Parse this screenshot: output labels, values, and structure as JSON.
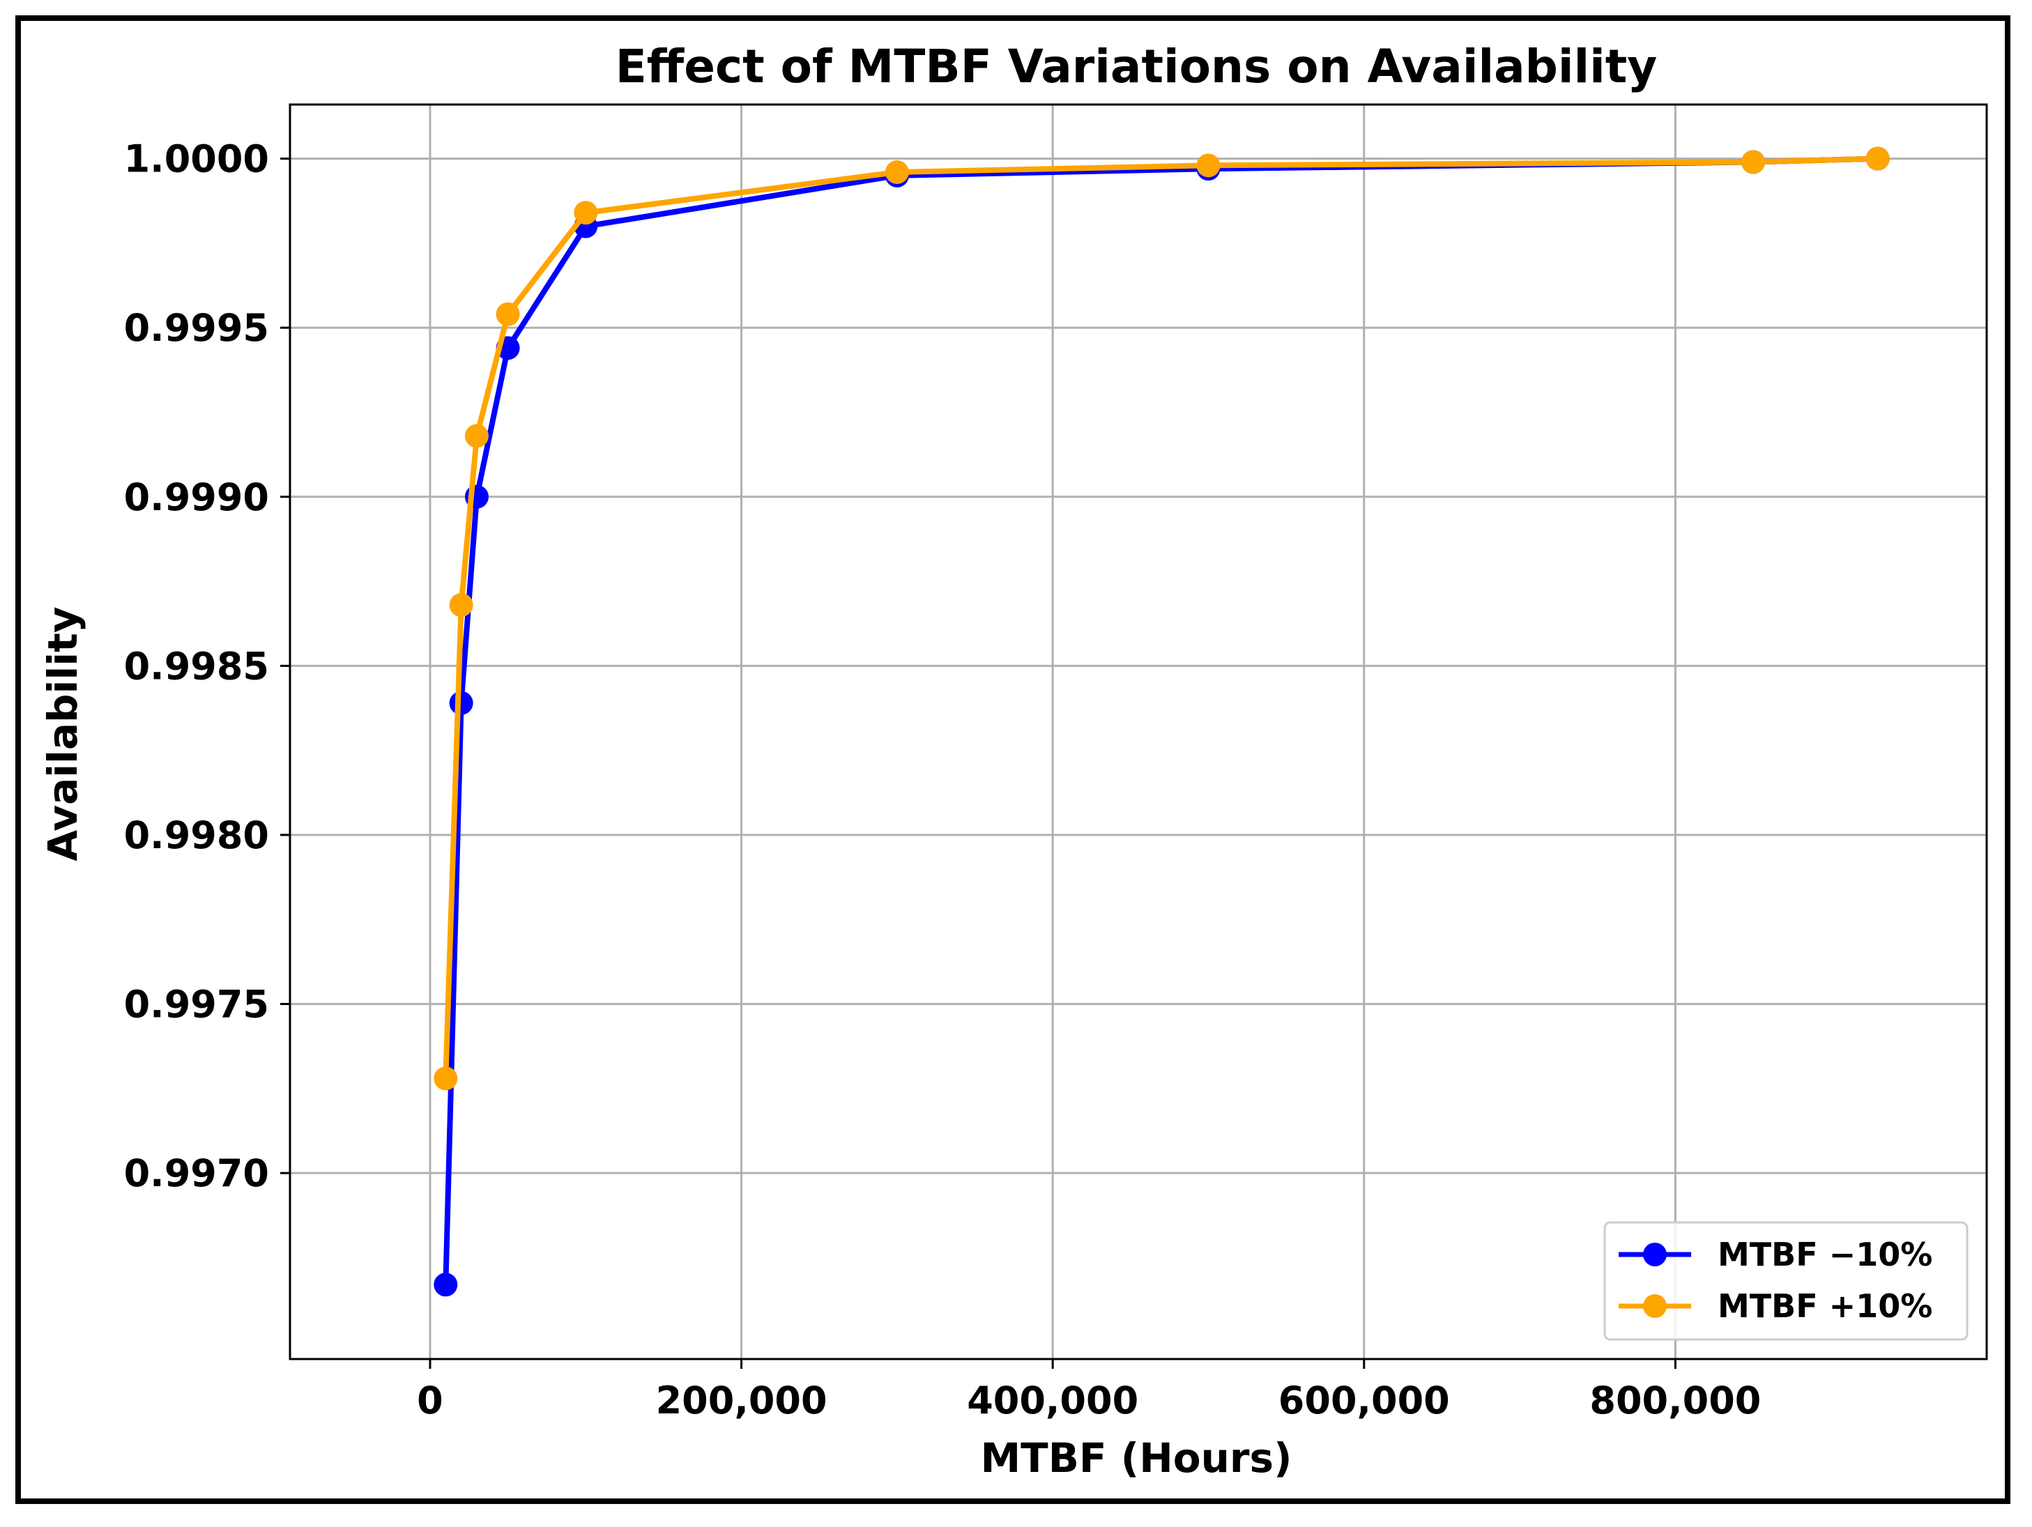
{
  "chart_data": {
    "type": "line",
    "title": "Effect of MTBF Variations on Availability",
    "xlabel": "MTBF (Hours)",
    "ylabel": "Availability",
    "xlim": [
      -90000,
      1000000
    ],
    "ylim": [
      0.99645,
      1.00016
    ],
    "xticks": [
      0,
      200000,
      400000,
      600000,
      800000
    ],
    "xtick_labels": [
      "0",
      "200,000",
      "400,000",
      "600,000",
      "800,000"
    ],
    "yticks": [
      0.997,
      0.9975,
      0.998,
      0.9985,
      0.999,
      0.9995,
      1.0
    ],
    "ytick_labels": [
      "0.9970",
      "0.9975",
      "0.9980",
      "0.9985",
      "0.9990",
      "0.9995",
      "1.0000"
    ],
    "grid": true,
    "legend_position": "lower-right",
    "series": [
      {
        "name": "MTBF −10%",
        "color": "#0000ff",
        "x": [
          10000,
          20000,
          30000,
          50000,
          100000,
          300000,
          500000,
          850000,
          930000
        ],
        "y": [
          0.99667,
          0.99839,
          0.999,
          0.99944,
          0.9998,
          0.99995,
          0.99997,
          0.99999,
          1.0
        ]
      },
      {
        "name": "MTBF +10%",
        "color": "#ffa500",
        "x": [
          10000,
          20000,
          30000,
          50000,
          100000,
          300000,
          500000,
          850000,
          930000
        ],
        "y": [
          0.99728,
          0.99868,
          0.99918,
          0.99954,
          0.99984,
          0.99996,
          0.99998,
          0.99999,
          1.0
        ]
      }
    ]
  }
}
